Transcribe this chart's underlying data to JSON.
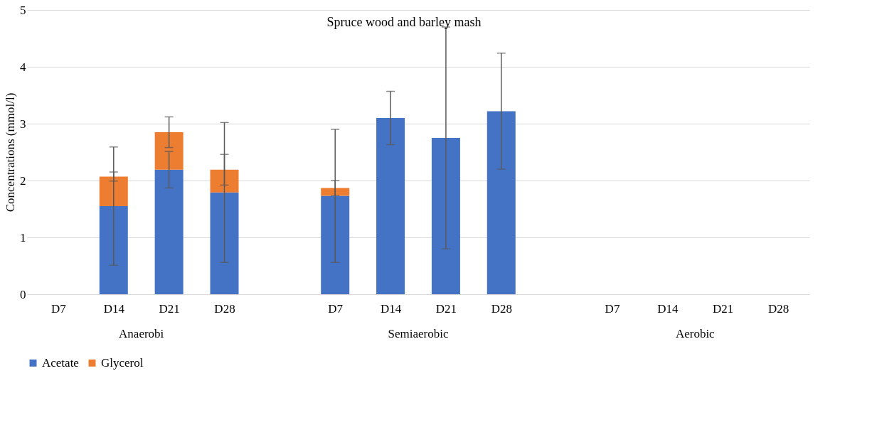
{
  "chart_data": {
    "type": "bar",
    "stacked": true,
    "title": "Spruce wood and barley mash",
    "ylabel": "Concentrations (mmol/l)",
    "categories": [
      "D7",
      "D14",
      "D21",
      "D28",
      null,
      "D7",
      "D14",
      "D21",
      "D28",
      null,
      "D7",
      "D14",
      "D21",
      "D28"
    ],
    "annotations": [
      "Anaerobi",
      "Semiaerobic",
      "Aerobic"
    ],
    "series": [
      {
        "name": "Acetate",
        "color": "#4472c4",
        "values": [
          null,
          1.55,
          2.19,
          1.79,
          null,
          1.73,
          3.1,
          2.75,
          3.22,
          null,
          null,
          null,
          null,
          null
        ],
        "errors": [
          null,
          1.04,
          0.32,
          1.23,
          null,
          1.17,
          0.47,
          1.95,
          1.02,
          null,
          null,
          null,
          null,
          null
        ]
      },
      {
        "name": "Glycerol",
        "color": "#ed7d31",
        "values": [
          null,
          0.52,
          0.66,
          0.4,
          null,
          0.14,
          null,
          null,
          null,
          null,
          null,
          null,
          null,
          null
        ],
        "errors": [
          null,
          0.08,
          0.27,
          0.27,
          null,
          0.13,
          null,
          null,
          null,
          null,
          null,
          null,
          null,
          null
        ]
      }
    ],
    "ylim": [
      0,
      5
    ],
    "yticks": [
      0,
      1,
      2,
      3,
      4,
      5
    ],
    "grid": "y",
    "legend": "bottom"
  }
}
